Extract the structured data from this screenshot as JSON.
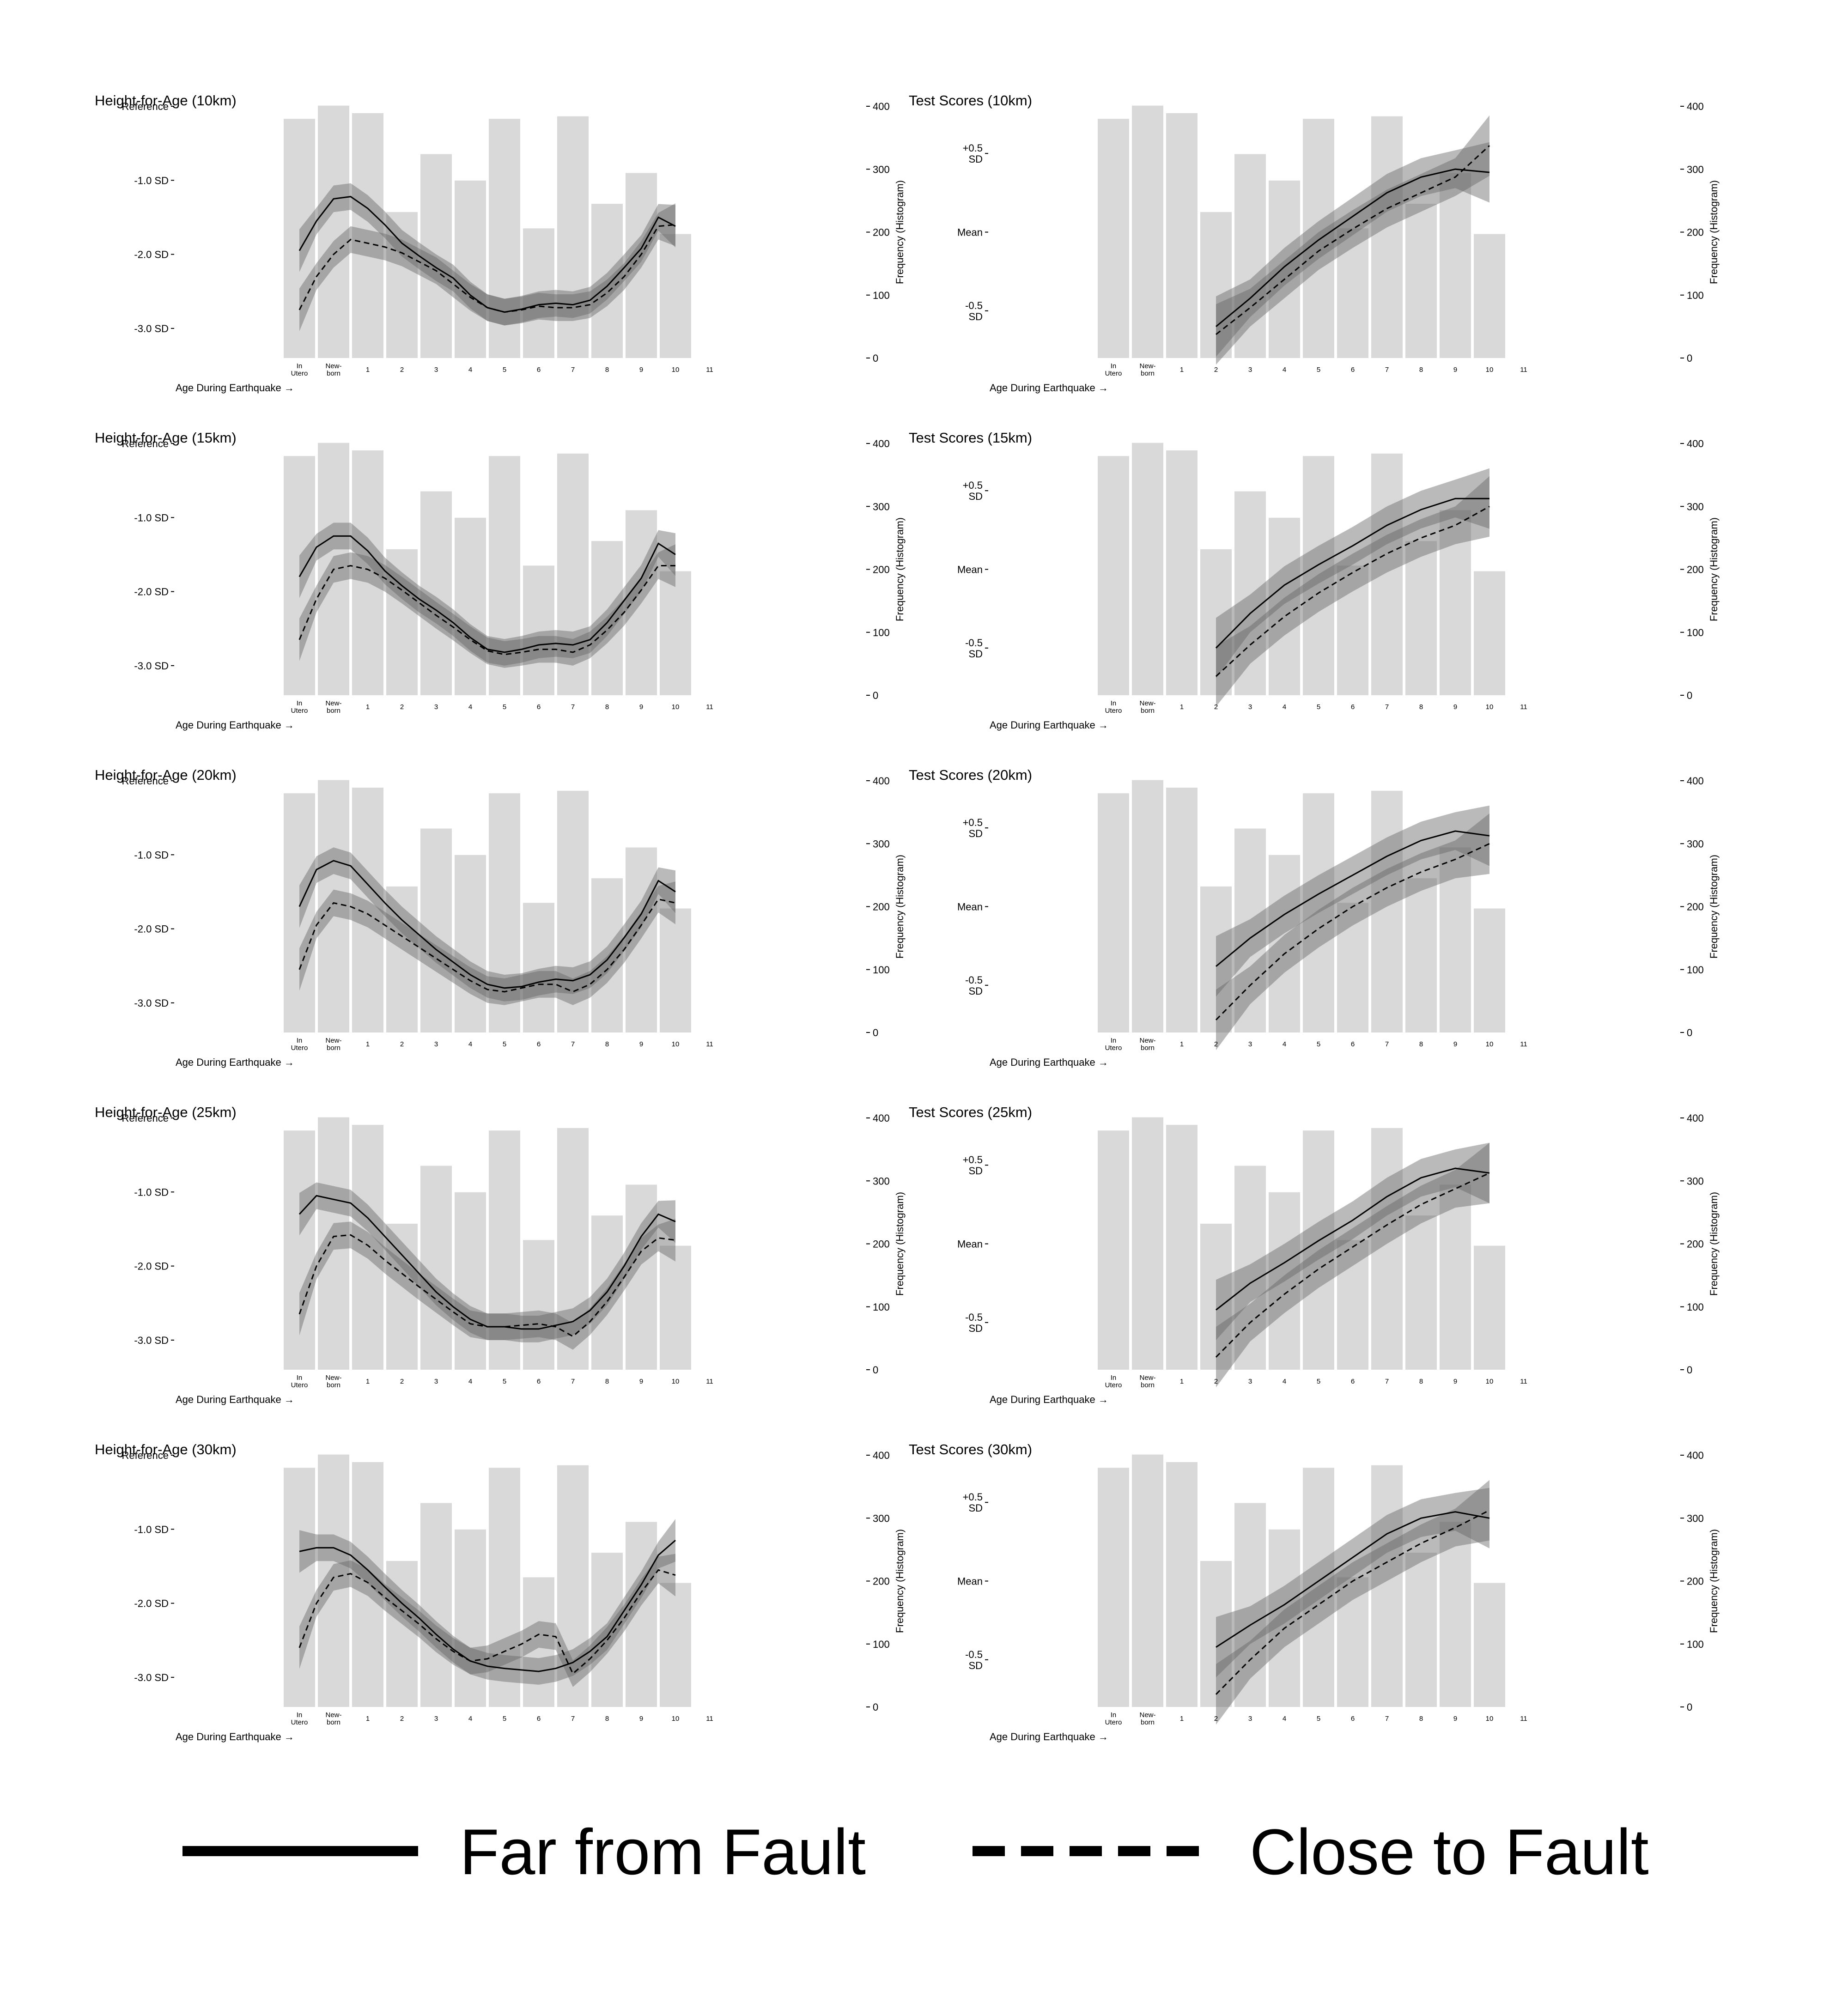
{
  "legend": {
    "far_label": "Far from Fault",
    "close_label": "Close to Fault"
  },
  "shared": {
    "x_axis_label": "Age During Earthquake →",
    "right_axis_label": "Frequency (Histogram)",
    "right_ticks": [
      "0",
      "100",
      "200",
      "300",
      "400"
    ],
    "x_categories": [
      "In\nUtero",
      "New-\nborn",
      "1",
      "2",
      "3",
      "4",
      "5",
      "6",
      "7",
      "8",
      "9",
      "10",
      "11"
    ],
    "histogram_counts": [
      380,
      401,
      389,
      232,
      324,
      282,
      380,
      206,
      384,
      245,
      294,
      197
    ]
  },
  "chart_data": [
    {
      "type": "line",
      "title": "Height-for-Age (10km)",
      "yticks": [
        "Reference",
        "-1.0 SD",
        "-2.0 SD",
        "-3.0 SD"
      ],
      "ylim": [
        -3.4,
        0.0
      ],
      "x": [
        0,
        0.5,
        1,
        1.5,
        2,
        2.5,
        3,
        3.5,
        4,
        4.5,
        5,
        5.5,
        6,
        6.5,
        7,
        7.5,
        8,
        8.5,
        9,
        9.5,
        10,
        10.5,
        11
      ],
      "series": [
        {
          "name": "Far from Fault",
          "values": [
            -1.95,
            -1.55,
            -1.25,
            -1.22,
            -1.38,
            -1.6,
            -1.85,
            -2.02,
            -2.18,
            -2.32,
            -2.55,
            -2.72,
            -2.78,
            -2.74,
            -2.68,
            -2.66,
            -2.68,
            -2.62,
            -2.43,
            -2.18,
            -1.92,
            -1.5,
            -1.62
          ]
        },
        {
          "name": "Close to Fault",
          "values": [
            -2.75,
            -2.3,
            -2.0,
            -1.8,
            -1.85,
            -1.9,
            -1.98,
            -2.1,
            -2.22,
            -2.4,
            -2.58,
            -2.72,
            -2.78,
            -2.75,
            -2.7,
            -2.72,
            -2.72,
            -2.68,
            -2.52,
            -2.3,
            -2.0,
            -1.62,
            -1.6
          ]
        }
      ]
    },
    {
      "type": "line",
      "title": "Test Scores (10km)",
      "yticks": [
        "+0.5\nSD",
        "Mean",
        "-0.5\nSD"
      ],
      "ylim": [
        -0.8,
        0.8
      ],
      "x": [
        3,
        4,
        5,
        6,
        7,
        8,
        9,
        10,
        11
      ],
      "series": [
        {
          "name": "Far from Fault",
          "values": [
            -0.6,
            -0.42,
            -0.22,
            -0.05,
            0.1,
            0.25,
            0.35,
            0.4,
            0.38
          ]
        },
        {
          "name": "Close to Fault",
          "values": [
            -0.65,
            -0.48,
            -0.3,
            -0.12,
            0.02,
            0.15,
            0.25,
            0.35,
            0.55
          ]
        }
      ]
    },
    {
      "type": "line",
      "title": "Height-for-Age (15km)",
      "yticks": [
        "Reference",
        "-1.0 SD",
        "-2.0 SD",
        "-3.0 SD"
      ],
      "ylim": [
        -3.4,
        0.0
      ],
      "x": [
        0,
        0.5,
        1,
        1.5,
        2,
        2.5,
        3,
        3.5,
        4,
        4.5,
        5,
        5.5,
        6,
        6.5,
        7,
        7.5,
        8,
        8.5,
        9,
        9.5,
        10,
        10.5,
        11
      ],
      "series": [
        {
          "name": "Far from Fault",
          "values": [
            -1.8,
            -1.4,
            -1.25,
            -1.25,
            -1.45,
            -1.72,
            -1.92,
            -2.1,
            -2.25,
            -2.42,
            -2.62,
            -2.78,
            -2.82,
            -2.78,
            -2.72,
            -2.7,
            -2.72,
            -2.65,
            -2.42,
            -2.12,
            -1.82,
            -1.35,
            -1.5
          ]
        },
        {
          "name": "Close to Fault",
          "values": [
            -2.65,
            -2.1,
            -1.7,
            -1.65,
            -1.7,
            -1.82,
            -1.98,
            -2.15,
            -2.32,
            -2.48,
            -2.65,
            -2.8,
            -2.85,
            -2.82,
            -2.78,
            -2.78,
            -2.82,
            -2.72,
            -2.52,
            -2.28,
            -1.98,
            -1.65,
            -1.65
          ]
        }
      ]
    },
    {
      "type": "line",
      "title": "Test Scores (15km)",
      "yticks": [
        "+0.5\nSD",
        "Mean",
        "-0.5\nSD"
      ],
      "ylim": [
        -0.8,
        0.8
      ],
      "x": [
        3,
        4,
        5,
        6,
        7,
        8,
        9,
        10,
        11
      ],
      "series": [
        {
          "name": "Far from Fault",
          "values": [
            -0.5,
            -0.28,
            -0.1,
            0.03,
            0.15,
            0.28,
            0.38,
            0.45,
            0.45
          ]
        },
        {
          "name": "Close to Fault",
          "values": [
            -0.68,
            -0.48,
            -0.3,
            -0.15,
            -0.02,
            0.1,
            0.2,
            0.28,
            0.4
          ]
        }
      ]
    },
    {
      "type": "line",
      "title": "Height-for-Age (20km)",
      "yticks": [
        "Reference",
        "-1.0 SD",
        "-2.0 SD",
        "-3.0 SD"
      ],
      "ylim": [
        -3.4,
        0.0
      ],
      "x": [
        0,
        0.5,
        1,
        1.5,
        2,
        2.5,
        3,
        3.5,
        4,
        4.5,
        5,
        5.5,
        6,
        6.5,
        7,
        7.5,
        8,
        8.5,
        9,
        9.5,
        10,
        10.5,
        11
      ],
      "series": [
        {
          "name": "Far from Fault",
          "values": [
            -1.7,
            -1.2,
            -1.08,
            -1.15,
            -1.4,
            -1.65,
            -1.88,
            -2.08,
            -2.28,
            -2.45,
            -2.62,
            -2.75,
            -2.8,
            -2.78,
            -2.72,
            -2.68,
            -2.7,
            -2.62,
            -2.42,
            -2.12,
            -1.8,
            -1.35,
            -1.5
          ]
        },
        {
          "name": "Close to Fault",
          "values": [
            -2.55,
            -1.95,
            -1.65,
            -1.7,
            -1.8,
            -1.95,
            -2.1,
            -2.25,
            -2.4,
            -2.55,
            -2.7,
            -2.82,
            -2.85,
            -2.8,
            -2.75,
            -2.75,
            -2.85,
            -2.75,
            -2.55,
            -2.28,
            -1.95,
            -1.6,
            -1.65
          ]
        }
      ]
    },
    {
      "type": "line",
      "title": "Test Scores (20km)",
      "yticks": [
        "+0.5\nSD",
        "Mean",
        "-0.5\nSD"
      ],
      "ylim": [
        -0.8,
        0.8
      ],
      "x": [
        3,
        4,
        5,
        6,
        7,
        8,
        9,
        10,
        11
      ],
      "series": [
        {
          "name": "Far from Fault",
          "values": [
            -0.38,
            -0.2,
            -0.05,
            0.08,
            0.2,
            0.32,
            0.42,
            0.48,
            0.45
          ]
        },
        {
          "name": "Close to Fault",
          "values": [
            -0.72,
            -0.5,
            -0.3,
            -0.14,
            0.0,
            0.12,
            0.22,
            0.3,
            0.4
          ]
        }
      ]
    },
    {
      "type": "line",
      "title": "Height-for-Age (25km)",
      "yticks": [
        "Reference",
        "-1.0 SD",
        "-2.0 SD",
        "-3.0 SD"
      ],
      "ylim": [
        -3.4,
        0.0
      ],
      "x": [
        0,
        0.5,
        1,
        1.5,
        2,
        2.5,
        3,
        3.5,
        4,
        4.5,
        5,
        5.5,
        6,
        6.5,
        7,
        7.5,
        8,
        8.5,
        9,
        9.5,
        10,
        10.5,
        11
      ],
      "series": [
        {
          "name": "Far from Fault",
          "values": [
            -1.3,
            -1.05,
            -1.1,
            -1.15,
            -1.35,
            -1.6,
            -1.85,
            -2.1,
            -2.35,
            -2.55,
            -2.72,
            -2.82,
            -2.82,
            -2.85,
            -2.85,
            -2.8,
            -2.75,
            -2.6,
            -2.35,
            -2.0,
            -1.6,
            -1.3,
            -1.4
          ]
        },
        {
          "name": "Close to Fault",
          "values": [
            -2.65,
            -2.0,
            -1.6,
            -1.58,
            -1.72,
            -1.92,
            -2.1,
            -2.28,
            -2.45,
            -2.62,
            -2.78,
            -2.82,
            -2.82,
            -2.8,
            -2.78,
            -2.82,
            -2.95,
            -2.75,
            -2.48,
            -2.15,
            -1.8,
            -1.62,
            -1.65
          ]
        }
      ]
    },
    {
      "type": "line",
      "title": "Test Scores (25km)",
      "yticks": [
        "+0.5\nSD",
        "Mean",
        "-0.5\nSD"
      ],
      "ylim": [
        -0.8,
        0.8
      ],
      "x": [
        3,
        4,
        5,
        6,
        7,
        8,
        9,
        10,
        11
      ],
      "series": [
        {
          "name": "Far from Fault",
          "values": [
            -0.42,
            -0.25,
            -0.12,
            0.02,
            0.15,
            0.3,
            0.42,
            0.48,
            0.45
          ]
        },
        {
          "name": "Close to Fault",
          "values": [
            -0.72,
            -0.5,
            -0.32,
            -0.16,
            -0.02,
            0.12,
            0.25,
            0.35,
            0.45
          ]
        }
      ]
    },
    {
      "type": "line",
      "title": "Height-for-Age (30km)",
      "yticks": [
        "Reference",
        "-1.0 SD",
        "-2.0 SD",
        "-3.0 SD"
      ],
      "ylim": [
        -3.4,
        0.0
      ],
      "x": [
        0,
        0.5,
        1,
        1.5,
        2,
        2.5,
        3,
        3.5,
        4,
        4.5,
        5,
        5.5,
        6,
        6.5,
        7,
        7.5,
        8,
        8.5,
        9,
        9.5,
        10,
        10.5,
        11
      ],
      "series": [
        {
          "name": "Far from Fault",
          "values": [
            -1.3,
            -1.25,
            -1.25,
            -1.35,
            -1.55,
            -1.78,
            -2.0,
            -2.2,
            -2.42,
            -2.62,
            -2.78,
            -2.85,
            -2.88,
            -2.9,
            -2.92,
            -2.88,
            -2.8,
            -2.65,
            -2.45,
            -2.1,
            -1.75,
            -1.35,
            -1.15
          ]
        },
        {
          "name": "Close to Fault",
          "values": [
            -2.6,
            -2.0,
            -1.65,
            -1.6,
            -1.72,
            -1.92,
            -2.1,
            -2.28,
            -2.48,
            -2.65,
            -2.78,
            -2.75,
            -2.65,
            -2.55,
            -2.42,
            -2.45,
            -2.95,
            -2.75,
            -2.5,
            -2.2,
            -1.85,
            -1.55,
            -1.62
          ]
        }
      ]
    },
    {
      "type": "line",
      "title": "Test Scores (30km)",
      "yticks": [
        "+0.5\nSD",
        "Mean",
        "-0.5\nSD"
      ],
      "ylim": [
        -0.8,
        0.8
      ],
      "x": [
        3,
        4,
        5,
        6,
        7,
        8,
        9,
        10,
        11
      ],
      "series": [
        {
          "name": "Far from Fault",
          "values": [
            -0.42,
            -0.28,
            -0.15,
            0.0,
            0.15,
            0.3,
            0.4,
            0.44,
            0.4
          ]
        },
        {
          "name": "Close to Fault",
          "values": [
            -0.72,
            -0.5,
            -0.3,
            -0.15,
            0.0,
            0.12,
            0.24,
            0.34,
            0.45
          ]
        }
      ]
    }
  ]
}
